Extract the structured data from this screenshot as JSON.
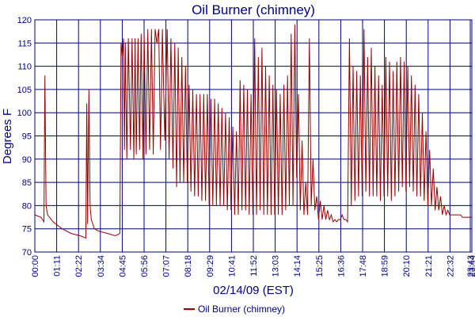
{
  "chart_data": {
    "type": "line",
    "title": "Oil Burner (chimney)",
    "xlabel": "02/14/09 (EST)",
    "ylabel": "Degrees F",
    "ylim": [
      70,
      120
    ],
    "yticks": [
      70,
      75,
      80,
      85,
      90,
      95,
      100,
      105,
      110,
      115,
      120
    ],
    "xticks": [
      "00:00",
      "01:11",
      "02:22",
      "03:34",
      "04:45",
      "05:56",
      "07:07",
      "08:18",
      "09:29",
      "10:41",
      "11:52",
      "13:03",
      "14:14",
      "15:25",
      "16:36",
      "17:48",
      "18:59",
      "20:10",
      "21:21",
      "22:32",
      "23:43",
      "23:44"
    ],
    "grid": true,
    "legend_position": "bottom-center",
    "colors": {
      "series": "#990000",
      "axis": "#000080",
      "grid": "#000080"
    },
    "series": [
      {
        "name": "Oil Burner (chimney)",
        "x_minutes": [
          0,
          20,
          25,
          30,
          33,
          37,
          42,
          60,
          90,
          120,
          150,
          168,
          171,
          174,
          178,
          182,
          186,
          196,
          210,
          240,
          265,
          280,
          284,
          288,
          292,
          295,
          298,
          303,
          308,
          315,
          320,
          326,
          330,
          334,
          340,
          345,
          350,
          356,
          360,
          366,
          372,
          378,
          384,
          390,
          396,
          402,
          408,
          414,
          420,
          428,
          436,
          442,
          448,
          455,
          461,
          467,
          472,
          478,
          484,
          490,
          496,
          502,
          508,
          514,
          520,
          526,
          532,
          538,
          544,
          550,
          556,
          562,
          568,
          574,
          580,
          586,
          592,
          598,
          604,
          610,
          616,
          622,
          628,
          634,
          640,
          646,
          652,
          658,
          664,
          670,
          676,
          682,
          688,
          694,
          700,
          706,
          712,
          718,
          724,
          730,
          736,
          742,
          748,
          754,
          760,
          766,
          772,
          778,
          784,
          790,
          796,
          802,
          808,
          814,
          820,
          826,
          832,
          838,
          844,
          850,
          856,
          862,
          868,
          874,
          880,
          886,
          892,
          898,
          904,
          910,
          916,
          922,
          928,
          934,
          940,
          946,
          952,
          958,
          964,
          970,
          976,
          982,
          988,
          994,
          1000,
          1006,
          1012,
          1018,
          1024,
          1030,
          1036,
          1042,
          1048,
          1054,
          1060,
          1066,
          1072,
          1078,
          1084,
          1090,
          1096,
          1102,
          1108,
          1114,
          1120,
          1126,
          1132,
          1138,
          1144,
          1150,
          1156,
          1162,
          1168,
          1174,
          1180,
          1186,
          1192,
          1198,
          1204,
          1210,
          1216,
          1222,
          1228,
          1234,
          1240,
          1246,
          1252,
          1258,
          1264,
          1270,
          1276,
          1282,
          1288,
          1294,
          1300,
          1306,
          1312,
          1318,
          1324,
          1330,
          1336,
          1342,
          1348,
          1354,
          1360,
          1366,
          1372,
          1378,
          1384,
          1390,
          1396,
          1402,
          1408,
          1414,
          1420,
          1426,
          1432,
          1439
        ],
        "values": [
          78,
          77.5,
          77,
          76.5,
          108,
          80,
          78,
          76.5,
          75,
          74,
          73.5,
          73,
          102,
          76,
          105,
          80,
          77,
          75,
          74.5,
          74,
          73.5,
          74,
          115,
          112,
          116,
          92,
          115,
          90,
          116,
          92,
          116,
          90,
          116,
          91,
          116,
          92,
          117,
          90,
          117,
          91,
          118,
          92,
          118,
          91,
          118,
          115,
          118,
          92,
          118,
          94,
          118,
          90,
          116,
          88,
          115,
          84,
          114,
          85,
          112,
          85,
          110,
          85,
          106,
          83,
          105,
          82,
          104,
          82,
          104,
          81,
          104,
          81,
          104,
          80,
          103,
          80,
          103,
          80,
          102,
          80,
          101,
          80,
          100,
          79,
          99,
          79,
          97,
          78,
          96,
          78,
          107,
          79,
          106,
          79,
          105,
          78,
          104,
          78,
          116,
          78,
          112,
          79,
          114,
          78,
          110,
          78,
          108,
          78,
          106,
          78,
          105,
          78,
          104,
          78,
          106,
          79,
          108,
          80,
          117,
          80,
          119,
          86,
          104,
          79,
          94,
          78,
          85,
          78,
          116,
          80,
          90,
          79,
          82,
          77,
          81,
          77,
          80,
          77,
          79,
          77,
          78,
          76.5,
          77,
          76.5,
          77,
          77,
          78,
          77,
          77,
          76.5,
          116,
          80,
          110,
          81,
          109,
          82,
          108,
          82,
          118,
          83,
          112,
          82,
          114,
          82,
          110,
          82,
          108,
          81,
          106,
          82,
          112,
          82,
          111,
          81,
          109,
          82,
          111,
          83,
          112,
          84,
          111,
          83,
          110,
          84,
          108,
          83,
          106,
          82,
          104,
          82,
          100,
          81,
          96,
          80,
          92,
          80,
          88,
          79,
          84,
          79,
          82,
          78,
          80,
          78,
          79,
          78,
          78,
          78,
          78,
          78,
          78,
          78,
          77.5,
          77.5,
          77.5,
          77.5,
          77.5,
          77.5
        ]
      }
    ]
  }
}
